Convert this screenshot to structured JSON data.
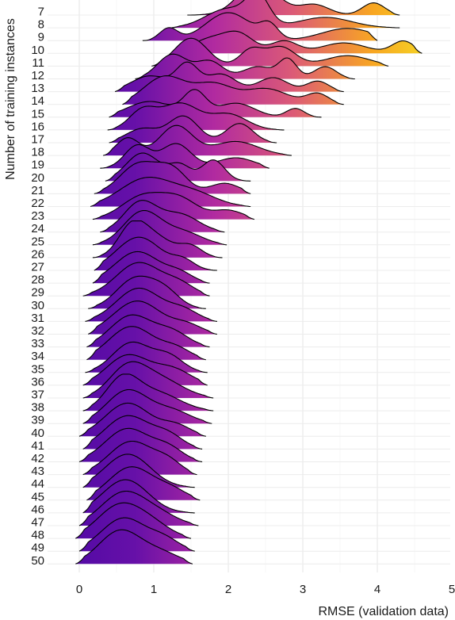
{
  "chart_data": {
    "type": "ridgeline",
    "title": "",
    "xlabel": "RMSE (validation data)",
    "ylabel": "Number of training instances",
    "xlim": [
      -0.42,
      5.0
    ],
    "x_ticks": [
      0,
      1,
      2,
      3,
      4,
      5
    ],
    "grid": true,
    "legend": "none",
    "fill_gradient": {
      "low_rmse_color": "#4b07a4",
      "mid_color": "#b12aa0",
      "high_rmse_color": "#f8a622"
    },
    "series": [
      {
        "name": "7",
        "range": [
          1.45,
          4.3
        ],
        "peaks": [
          [
            2.4,
            0.26,
            0.95
          ],
          [
            3.15,
            0.2,
            0.3
          ],
          [
            3.95,
            0.15,
            0.35
          ]
        ]
      },
      {
        "name": "8",
        "range": [
          1.22,
          4.3
        ],
        "peaks": [
          [
            2.0,
            0.3,
            0.55
          ],
          [
            2.4,
            0.15,
            0.8
          ],
          [
            3.3,
            0.35,
            0.3
          ]
        ]
      },
      {
        "name": "9",
        "range": [
          0.85,
          4.0
        ],
        "peaks": [
          [
            1.2,
            0.12,
            0.35
          ],
          [
            2.0,
            0.3,
            0.8
          ],
          [
            2.55,
            0.12,
            0.4
          ],
          [
            3.6,
            0.35,
            0.35
          ]
        ]
      },
      {
        "name": "10",
        "range": [
          1.3,
          4.6
        ],
        "peaks": [
          [
            1.75,
            0.25,
            0.4
          ],
          [
            2.15,
            0.2,
            0.5
          ],
          [
            2.75,
            0.18,
            0.35
          ],
          [
            3.55,
            0.3,
            0.3
          ],
          [
            4.35,
            0.15,
            0.35
          ]
        ]
      },
      {
        "name": "11",
        "range": [
          0.97,
          4.15
        ],
        "peaks": [
          [
            1.5,
            0.22,
            0.8
          ],
          [
            2.3,
            0.15,
            0.45
          ],
          [
            2.7,
            0.2,
            0.55
          ],
          [
            3.6,
            0.3,
            0.3
          ]
        ]
      },
      {
        "name": "12",
        "range": [
          0.75,
          3.7
        ],
        "peaks": [
          [
            1.25,
            0.2,
            0.7
          ],
          [
            1.75,
            0.18,
            0.5
          ],
          [
            2.4,
            0.2,
            0.35
          ],
          [
            2.8,
            0.12,
            0.55
          ],
          [
            3.3,
            0.15,
            0.35
          ]
        ]
      },
      {
        "name": "13",
        "range": [
          0.48,
          3.55
        ],
        "peaks": [
          [
            0.95,
            0.25,
            0.45
          ],
          [
            1.45,
            0.15,
            0.75
          ],
          [
            1.9,
            0.2,
            0.5
          ],
          [
            2.6,
            0.2,
            0.4
          ],
          [
            3.2,
            0.15,
            0.3
          ]
        ]
      },
      {
        "name": "14",
        "range": [
          0.58,
          3.55
        ],
        "peaks": [
          [
            1.15,
            0.28,
            0.8
          ],
          [
            1.8,
            0.25,
            0.55
          ],
          [
            2.5,
            0.3,
            0.45
          ],
          [
            3.2,
            0.15,
            0.3
          ]
        ]
      },
      {
        "name": "15",
        "range": [
          0.4,
          3.25
        ],
        "peaks": [
          [
            0.95,
            0.3,
            0.45
          ],
          [
            1.55,
            0.15,
            0.7
          ],
          [
            2.1,
            0.25,
            0.4
          ],
          [
            2.9,
            0.12,
            0.25
          ]
        ]
      },
      {
        "name": "16",
        "range": [
          0.38,
          2.75
        ],
        "peaks": [
          [
            0.85,
            0.18,
            0.55
          ],
          [
            1.35,
            0.25,
            0.75
          ],
          [
            2.0,
            0.25,
            0.45
          ]
        ]
      },
      {
        "name": "17",
        "range": [
          0.4,
          2.65
        ],
        "peaks": [
          [
            0.85,
            0.22,
            0.4
          ],
          [
            1.4,
            0.2,
            0.75
          ],
          [
            2.15,
            0.18,
            0.55
          ]
        ]
      },
      {
        "name": "18",
        "range": [
          0.32,
          2.85
        ],
        "peaks": [
          [
            0.65,
            0.15,
            0.5
          ],
          [
            1.3,
            0.22,
            0.85
          ],
          [
            2.1,
            0.3,
            0.4
          ]
        ]
      },
      {
        "name": "19",
        "range": [
          0.28,
          2.55
        ],
        "peaks": [
          [
            0.78,
            0.17,
            0.65
          ],
          [
            1.3,
            0.2,
            0.7
          ],
          [
            2.1,
            0.25,
            0.3
          ]
        ]
      },
      {
        "name": "20",
        "range": [
          0.35,
          2.3
        ],
        "peaks": [
          [
            0.85,
            0.22,
            0.8
          ],
          [
            1.35,
            0.15,
            0.45
          ],
          [
            1.8,
            0.15,
            0.6
          ]
        ]
      },
      {
        "name": "21",
        "range": [
          0.2,
          2.3
        ],
        "peaks": [
          [
            0.8,
            0.25,
            0.85
          ],
          [
            1.25,
            0.2,
            0.65
          ],
          [
            1.95,
            0.2,
            0.3
          ]
        ]
      },
      {
        "name": "22",
        "range": [
          0.15,
          2.3
        ],
        "peaks": [
          [
            0.9,
            0.35,
            0.8
          ],
          [
            1.55,
            0.3,
            0.35
          ]
        ]
      },
      {
        "name": "23",
        "range": [
          0.18,
          2.35
        ],
        "peaks": [
          [
            0.85,
            0.28,
            0.65
          ],
          [
            1.35,
            0.25,
            0.55
          ],
          [
            2.0,
            0.2,
            0.25
          ]
        ]
      },
      {
        "name": "24",
        "range": [
          0.28,
          1.95
        ],
        "peaks": [
          [
            0.82,
            0.22,
            0.85
          ],
          [
            1.35,
            0.25,
            0.5
          ]
        ]
      },
      {
        "name": "25",
        "range": [
          0.18,
          1.98
        ],
        "peaks": [
          [
            0.85,
            0.25,
            0.95
          ],
          [
            1.4,
            0.25,
            0.35
          ]
        ]
      },
      {
        "name": "26",
        "range": [
          0.18,
          1.92
        ],
        "peaks": [
          [
            0.7,
            0.18,
            0.75
          ],
          [
            1.0,
            0.25,
            0.6
          ],
          [
            1.5,
            0.15,
            0.3
          ]
        ]
      },
      {
        "name": "27",
        "range": [
          0.2,
          1.85
        ],
        "peaks": [
          [
            0.8,
            0.3,
            0.95
          ],
          [
            1.4,
            0.15,
            0.25
          ]
        ]
      },
      {
        "name": "28",
        "range": [
          0.18,
          1.75
        ],
        "peaks": [
          [
            0.78,
            0.3,
            0.9
          ],
          [
            1.35,
            0.18,
            0.25
          ]
        ]
      },
      {
        "name": "29",
        "range": [
          0.05,
          1.75
        ],
        "peaks": [
          [
            0.8,
            0.3,
            0.95
          ],
          [
            1.35,
            0.2,
            0.3
          ]
        ]
      },
      {
        "name": "30",
        "range": [
          0.12,
          1.7
        ],
        "peaks": [
          [
            0.75,
            0.25,
            0.85
          ],
          [
            1.15,
            0.2,
            0.45
          ]
        ]
      },
      {
        "name": "31",
        "range": [
          0.08,
          1.85
        ],
        "peaks": [
          [
            0.8,
            0.3,
            0.95
          ],
          [
            1.4,
            0.2,
            0.3
          ]
        ]
      },
      {
        "name": "32",
        "range": [
          0.12,
          1.85
        ],
        "peaks": [
          [
            0.78,
            0.32,
            0.95
          ],
          [
            1.45,
            0.2,
            0.25
          ]
        ]
      },
      {
        "name": "33",
        "range": [
          0.1,
          1.75
        ],
        "peaks": [
          [
            0.7,
            0.28,
            0.9
          ],
          [
            1.25,
            0.22,
            0.4
          ]
        ]
      },
      {
        "name": "34",
        "range": [
          0.1,
          1.7
        ],
        "peaks": [
          [
            0.7,
            0.3,
            0.95
          ],
          [
            1.3,
            0.2,
            0.3
          ]
        ]
      },
      {
        "name": "35",
        "range": [
          0.08,
          1.72
        ],
        "peaks": [
          [
            0.7,
            0.25,
            0.85
          ],
          [
            1.2,
            0.2,
            0.45
          ]
        ]
      },
      {
        "name": "36",
        "range": [
          0.05,
          1.72
        ],
        "peaks": [
          [
            0.65,
            0.28,
            0.85
          ],
          [
            1.25,
            0.25,
            0.45
          ]
        ]
      },
      {
        "name": "37",
        "range": [
          0.05,
          1.8
        ],
        "peaks": [
          [
            0.65,
            0.25,
            0.85
          ],
          [
            1.1,
            0.3,
            0.5
          ]
        ]
      },
      {
        "name": "38",
        "range": [
          0.05,
          1.8
        ],
        "peaks": [
          [
            0.58,
            0.22,
            0.9
          ],
          [
            1.05,
            0.3,
            0.5
          ]
        ]
      },
      {
        "name": "39",
        "range": [
          0.05,
          1.78
        ],
        "peaks": [
          [
            0.65,
            0.28,
            0.95
          ],
          [
            1.25,
            0.25,
            0.35
          ]
        ]
      },
      {
        "name": "40",
        "range": [
          0.0,
          1.7
        ],
        "peaks": [
          [
            0.65,
            0.3,
            0.95
          ],
          [
            1.3,
            0.2,
            0.3
          ]
        ]
      },
      {
        "name": "41",
        "range": [
          0.05,
          1.65
        ],
        "peaks": [
          [
            0.65,
            0.3,
            0.95
          ],
          [
            1.2,
            0.2,
            0.35
          ]
        ]
      },
      {
        "name": "42",
        "range": [
          0.0,
          1.65
        ],
        "peaks": [
          [
            0.65,
            0.3,
            0.95
          ],
          [
            1.2,
            0.2,
            0.35
          ]
        ]
      },
      {
        "name": "43",
        "range": [
          0.05,
          1.58
        ],
        "peaks": [
          [
            0.7,
            0.3,
            0.95
          ],
          [
            1.2,
            0.18,
            0.3
          ]
        ]
      },
      {
        "name": "44",
        "range": [
          0.05,
          1.55
        ],
        "peaks": [
          [
            0.65,
            0.3,
            0.95
          ]
        ]
      },
      {
        "name": "45",
        "range": [
          0.1,
          1.62
        ],
        "peaks": [
          [
            0.7,
            0.3,
            0.95
          ],
          [
            1.25,
            0.2,
            0.25
          ]
        ]
      },
      {
        "name": "46",
        "range": [
          0.05,
          1.55
        ],
        "peaks": [
          [
            0.62,
            0.3,
            0.95
          ]
        ]
      },
      {
        "name": "47",
        "range": [
          0.0,
          1.6
        ],
        "peaks": [
          [
            0.6,
            0.3,
            0.95
          ],
          [
            1.1,
            0.25,
            0.25
          ]
        ]
      },
      {
        "name": "48",
        "range": [
          -0.05,
          1.5
        ],
        "peaks": [
          [
            0.55,
            0.3,
            0.95
          ],
          [
            1.0,
            0.25,
            0.3
          ]
        ]
      },
      {
        "name": "49",
        "range": [
          0.0,
          1.55
        ],
        "peaks": [
          [
            0.6,
            0.3,
            0.95
          ],
          [
            1.15,
            0.2,
            0.3
          ]
        ]
      },
      {
        "name": "50",
        "range": [
          -0.05,
          1.52
        ],
        "peaks": [
          [
            0.55,
            0.28,
            0.95
          ],
          [
            1.1,
            0.25,
            0.3
          ]
        ]
      }
    ]
  }
}
